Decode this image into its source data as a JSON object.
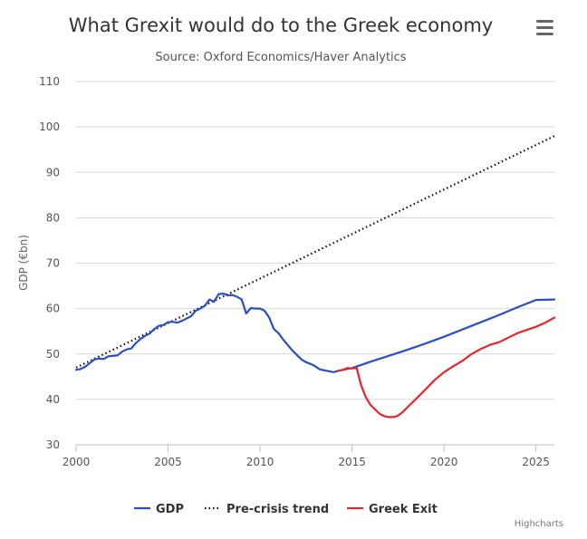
{
  "chart_data": {
    "type": "line",
    "title": "What Grexit would do to the Greek economy",
    "subtitle": "Source: Oxford Economics/Haver Analytics",
    "ylabel": "GDP (€bn)",
    "xlabel": "",
    "xlim": [
      2000,
      2026
    ],
    "ylim": [
      30,
      110
    ],
    "xticks": [
      2000,
      2005,
      2010,
      2015,
      2020,
      2025
    ],
    "yticks": [
      30,
      40,
      50,
      60,
      70,
      80,
      90,
      100,
      110
    ],
    "grid": true,
    "legend_position": "bottom-center",
    "series": [
      {
        "name": "GDP",
        "color": "#2b4fc2",
        "style": "solid",
        "x": [
          2000,
          2000.25,
          2000.5,
          2000.75,
          2001,
          2001.25,
          2001.5,
          2001.75,
          2002,
          2002.25,
          2002.5,
          2002.75,
          2003,
          2003.25,
          2003.5,
          2003.75,
          2004,
          2004.25,
          2004.5,
          2004.75,
          2005,
          2005.25,
          2005.5,
          2005.75,
          2006,
          2006.25,
          2006.5,
          2006.75,
          2007,
          2007.25,
          2007.5,
          2007.75,
          2008,
          2008.25,
          2008.5,
          2008.75,
          2009,
          2009.25,
          2009.5,
          2009.75,
          2010,
          2010.25,
          2010.5,
          2010.75,
          2011,
          2011.25,
          2011.5,
          2011.75,
          2012,
          2012.25,
          2012.5,
          2012.75,
          2013,
          2013.25,
          2013.5,
          2013.75,
          2014,
          2014.25,
          2014.5,
          2014.75,
          2015,
          2015.5,
          2016,
          2017,
          2018,
          2019,
          2020,
          2021,
          2022,
          2023,
          2024,
          2025,
          2026
        ],
        "values": [
          46.5,
          46.7,
          47.2,
          48.0,
          48.8,
          49.0,
          48.9,
          49.5,
          49.6,
          49.7,
          50.5,
          51.0,
          51.2,
          52.4,
          53.3,
          54.0,
          54.5,
          55.5,
          56.2,
          56.4,
          57.0,
          57.1,
          56.9,
          57.3,
          57.8,
          58.3,
          59.5,
          60.0,
          60.6,
          62.0,
          61.5,
          63.2,
          63.3,
          62.9,
          63.0,
          62.6,
          62.0,
          58.9,
          60.1,
          60.0,
          60.0,
          59.5,
          58.0,
          55.5,
          54.6,
          53.2,
          52.0,
          50.8,
          49.8,
          48.8,
          48.2,
          47.8,
          47.3,
          46.6,
          46.4,
          46.2,
          46.0,
          46.3,
          46.5,
          46.7,
          46.9,
          47.6,
          48.3,
          49.6,
          50.9,
          52.3,
          53.8,
          55.4,
          57.0,
          58.6,
          60.3,
          61.9,
          62.0
        ]
      },
      {
        "name": "Pre-crisis trend",
        "color": "#111111",
        "style": "dotted",
        "x": [
          2000,
          2026
        ],
        "values": [
          47.0,
          98.0
        ]
      },
      {
        "name": "Greek Exit",
        "color": "#e8252b",
        "style": "solid",
        "x": [
          2014.25,
          2014.5,
          2014.75,
          2015,
          2015.25,
          2015.5,
          2015.75,
          2016,
          2016.25,
          2016.5,
          2016.75,
          2017,
          2017.25,
          2017.5,
          2017.75,
          2018,
          2018.5,
          2019,
          2019.5,
          2020,
          2020.5,
          2021,
          2021.5,
          2022,
          2022.5,
          2023,
          2023.5,
          2024,
          2024.5,
          2025,
          2025.5,
          2026
        ],
        "values": [
          46.3,
          46.5,
          46.9,
          46.8,
          46.9,
          43.0,
          40.5,
          38.8,
          37.8,
          36.8,
          36.3,
          36.1,
          36.1,
          36.4,
          37.2,
          38.2,
          40.2,
          42.2,
          44.3,
          46.0,
          47.3,
          48.5,
          50.0,
          51.1,
          52.0,
          52.6,
          53.6,
          54.6,
          55.3,
          56.0,
          56.9,
          58.0
        ]
      }
    ]
  },
  "menu": {
    "icon": "hamburger-menu-icon"
  },
  "credits": "Highcharts"
}
